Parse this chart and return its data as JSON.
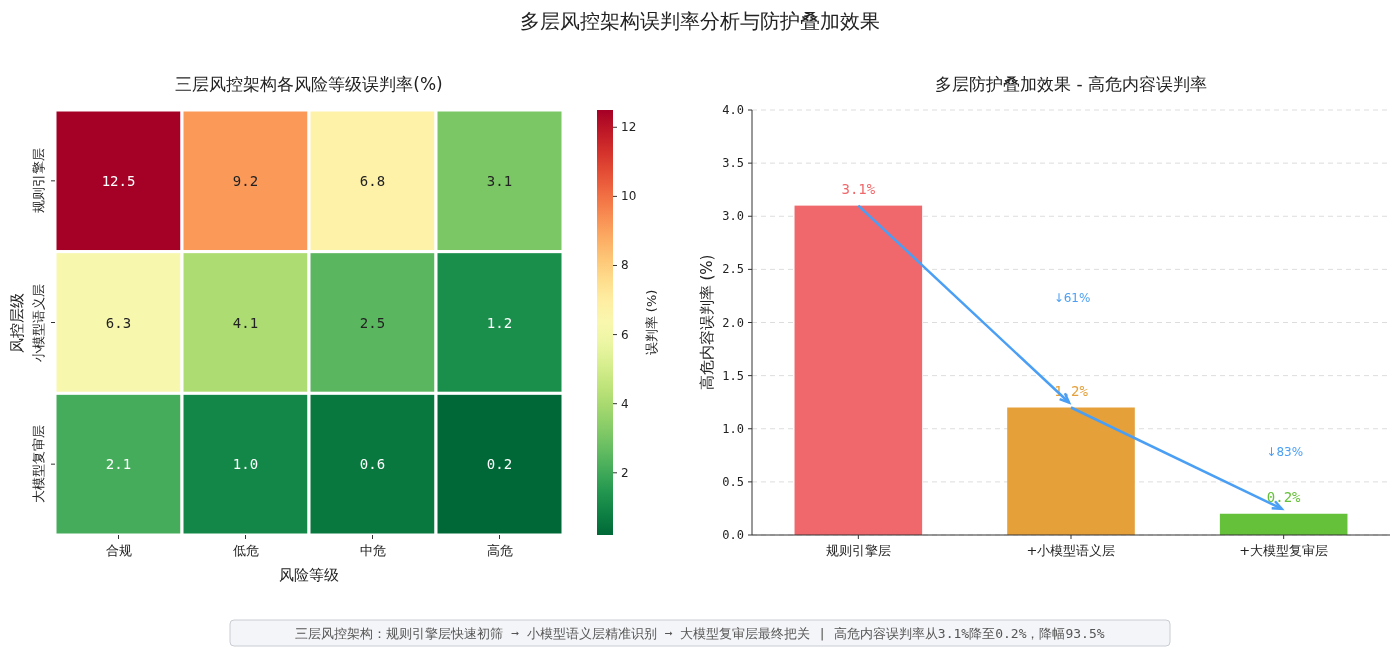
{
  "chart_data": [
    {
      "type": "other",
      "title": "多层风控架构误判率分析与防护叠加效果",
      "annotations": [
        "三层风控架构：规则引擎层快速初筛 ➞ 小模型语义层精准识别 ➞ 大模型复审层最终把关 | 高危内容误判率从3.1%降至0.2%，降幅93.5%"
      ]
    },
    {
      "type": "heatmap",
      "title": "三层风控架构各风险等级误判率(%)",
      "xlabel": "风险等级",
      "ylabel": "风控层级",
      "clabel": "误判率 (%)",
      "categories": [
        "合规",
        "低危",
        "中危",
        "高危"
      ],
      "y_categories": [
        "规则引擎层",
        "小模型语义层",
        "大模型复审层"
      ],
      "cells": [
        [
          12.5,
          9.2,
          6.8,
          3.1
        ],
        [
          6.3,
          4.1,
          2.5,
          1.2
        ],
        [
          2.1,
          1.0,
          0.6,
          0.2
        ]
      ],
      "cell_labels": [
        [
          "12.5",
          "9.2",
          "6.8",
          "3.1"
        ],
        [
          "6.3",
          "4.1",
          "2.5",
          "1.2"
        ],
        [
          "2.1",
          "1.0",
          "0.6",
          "0.2"
        ]
      ],
      "clim": [
        0.2,
        12.5
      ],
      "cticks": [
        2,
        4,
        6,
        8,
        10,
        12
      ],
      "data_labels": true
    },
    {
      "type": "bar",
      "title": "多层防护叠加效果 - 高危内容误判率",
      "ylabel": "高危内容误判率 (%)",
      "categories": [
        "规则引擎层",
        "+小模型语义层",
        "+大模型复审层"
      ],
      "values": [
        3.1,
        1.2,
        0.2
      ],
      "colors": [
        "#f0686b",
        "#e5a03a",
        "#66c13a"
      ],
      "value_labels": [
        "3.1%",
        "1.2%",
        "0.2%"
      ],
      "ylim": [
        0,
        4
      ],
      "yticks": [
        {
          "value": 0,
          "label": "0.0"
        },
        {
          "value": 0.5,
          "label": "0.5"
        },
        {
          "value": 1,
          "label": "1.0"
        },
        {
          "value": 1.5,
          "label": "1.5"
        },
        {
          "value": 2,
          "label": "2.0"
        },
        {
          "value": 2.5,
          "label": "2.5"
        },
        {
          "value": 3,
          "label": "3.0"
        },
        {
          "value": 3.5,
          "label": "3.5"
        },
        {
          "value": 4,
          "label": "4.0"
        }
      ],
      "grid": "y",
      "annotations": [
        "↓61%",
        "↓83%"
      ]
    }
  ]
}
